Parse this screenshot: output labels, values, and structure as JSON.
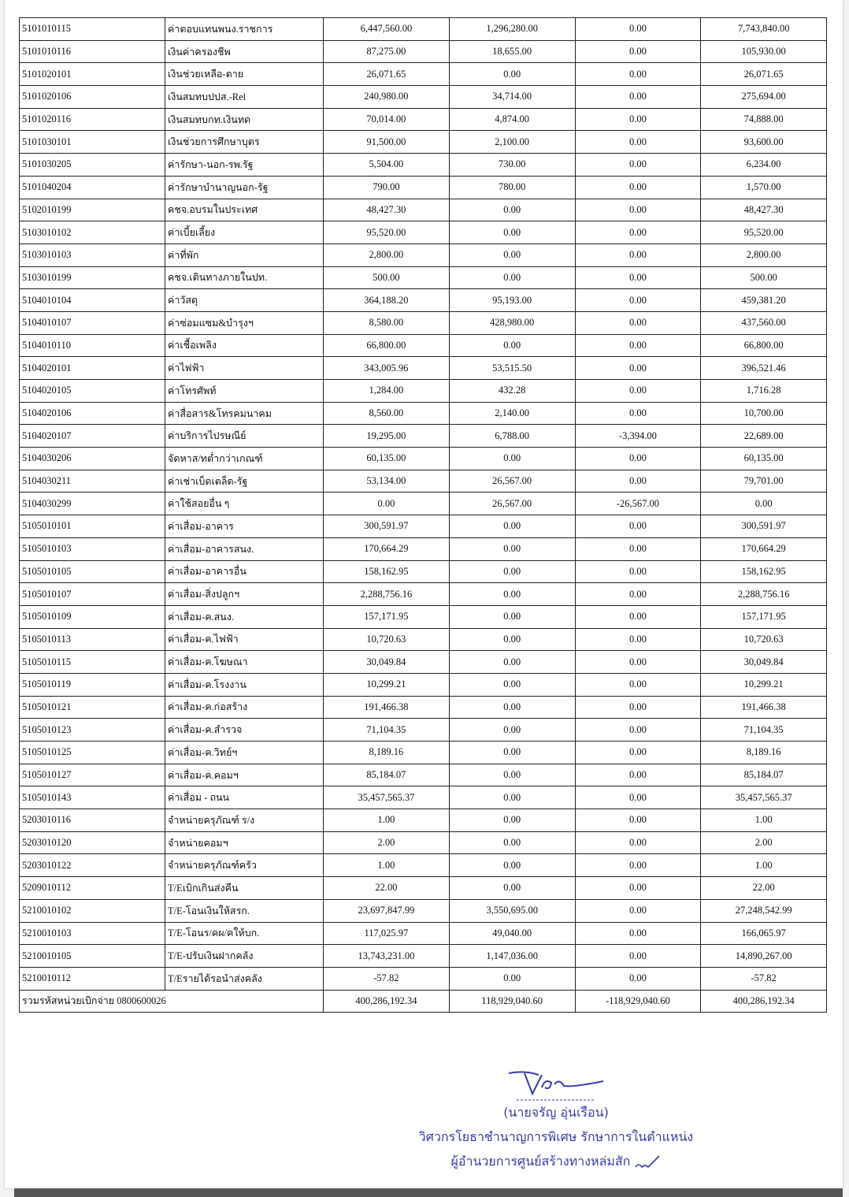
{
  "table": {
    "rows": [
      {
        "code": "5101010115",
        "name": "ค่าตอบแทนพนง.ราชการ",
        "c1": "6,447,560.00",
        "c2": "1,296,280.00",
        "c3": "0.00",
        "c4": "7,743,840.00"
      },
      {
        "code": "5101010116",
        "name": "เงินค่าครองชีพ",
        "c1": "87,275.00",
        "c2": "18,655.00",
        "c3": "0.00",
        "c4": "105,930.00"
      },
      {
        "code": "5101020101",
        "name": "เงินช่วยเหลือ-ตาย",
        "c1": "26,071.65",
        "c2": "0.00",
        "c3": "0.00",
        "c4": "26,071.65"
      },
      {
        "code": "5101020106",
        "name": "เงินสมทบปปส.-Rel",
        "c1": "240,980.00",
        "c2": "34,714.00",
        "c3": "0.00",
        "c4": "275,694.00"
      },
      {
        "code": "5101020116",
        "name": "เงินสมทบกท.เงินทด",
        "c1": "70,014.00",
        "c2": "4,874.00",
        "c3": "0.00",
        "c4": "74,888.00"
      },
      {
        "code": "5101030101",
        "name": "เงินช่วยการศึกษาบุตร",
        "c1": "91,500.00",
        "c2": "2,100.00",
        "c3": "0.00",
        "c4": "93,600.00"
      },
      {
        "code": "5101030205",
        "name": "ค่ารักษา-นอก-รพ.รัฐ",
        "c1": "5,504.00",
        "c2": "730.00",
        "c3": "0.00",
        "c4": "6,234.00"
      },
      {
        "code": "5101040204",
        "name": "ค่ารักษาบำนาญนอก-รัฐ",
        "c1": "790.00",
        "c2": "780.00",
        "c3": "0.00",
        "c4": "1,570.00"
      },
      {
        "code": "5102010199",
        "name": "คชจ.อบรมในประเทศ",
        "c1": "48,427.30",
        "c2": "0.00",
        "c3": "0.00",
        "c4": "48,427.30"
      },
      {
        "code": "5103010102",
        "name": "ค่าเบี้ยเลี้ยง",
        "c1": "95,520.00",
        "c2": "0.00",
        "c3": "0.00",
        "c4": "95,520.00"
      },
      {
        "code": "5103010103",
        "name": "ค่าที่พัก",
        "c1": "2,800.00",
        "c2": "0.00",
        "c3": "0.00",
        "c4": "2,800.00"
      },
      {
        "code": "5103010199",
        "name": "คชจ.เดินทางภายในปท.",
        "c1": "500.00",
        "c2": "0.00",
        "c3": "0.00",
        "c4": "500.00"
      },
      {
        "code": "5104010104",
        "name": "ค่าวัสดุ",
        "c1": "364,188.20",
        "c2": "95,193.00",
        "c3": "0.00",
        "c4": "459,381.20"
      },
      {
        "code": "5104010107",
        "name": "ค่าซ่อมแซม&บำรุงฯ",
        "c1": "8,580.00",
        "c2": "428,980.00",
        "c3": "0.00",
        "c4": "437,560.00"
      },
      {
        "code": "5104010110",
        "name": "ค่าเชื้อเพลิง",
        "c1": "66,800.00",
        "c2": "0.00",
        "c3": "0.00",
        "c4": "66,800.00"
      },
      {
        "code": "5104020101",
        "name": "ค่าไฟฟ้า",
        "c1": "343,005.96",
        "c2": "53,515.50",
        "c3": "0.00",
        "c4": "396,521.46"
      },
      {
        "code": "5104020105",
        "name": "ค่าโทรศัพท์",
        "c1": "1,284.00",
        "c2": "432.28",
        "c3": "0.00",
        "c4": "1,716.28"
      },
      {
        "code": "5104020106",
        "name": "ค่าสื่อสาร&โทรคมนาคม",
        "c1": "8,560.00",
        "c2": "2,140.00",
        "c3": "0.00",
        "c4": "10,700.00"
      },
      {
        "code": "5104020107",
        "name": "ค่าบริการไปรษณีย์",
        "c1": "19,295.00",
        "c2": "6,788.00",
        "c3": "-3,394.00",
        "c4": "22,689.00"
      },
      {
        "code": "5104030206",
        "name": "จัดหาส/ทต่ำกว่าเกณฑ์",
        "c1": "60,135.00",
        "c2": "0.00",
        "c3": "0.00",
        "c4": "60,135.00"
      },
      {
        "code": "5104030211",
        "name": "ค่าเช่าเบ็ดเตล็ด-รัฐ",
        "c1": "53,134.00",
        "c2": "26,567.00",
        "c3": "0.00",
        "c4": "79,701.00"
      },
      {
        "code": "5104030299",
        "name": "ค่าใช้สอยอื่น ๆ",
        "c1": "0.00",
        "c2": "26,567.00",
        "c3": "-26,567.00",
        "c4": "0.00"
      },
      {
        "code": "5105010101",
        "name": "ค่าเสื่อม-อาคาร",
        "c1": "300,591.97",
        "c2": "0.00",
        "c3": "0.00",
        "c4": "300,591.97"
      },
      {
        "code": "5105010103",
        "name": "ค่าเสื่อม-อาคารสนง.",
        "c1": "170,664.29",
        "c2": "0.00",
        "c3": "0.00",
        "c4": "170,664.29"
      },
      {
        "code": "5105010105",
        "name": "ค่าเสื่อม-อาคารอื่น",
        "c1": "158,162.95",
        "c2": "0.00",
        "c3": "0.00",
        "c4": "158,162.95"
      },
      {
        "code": "5105010107",
        "name": "ค่าเสื่อม-สิ่งปลูกฯ",
        "c1": "2,288,756.16",
        "c2": "0.00",
        "c3": "0.00",
        "c4": "2,288,756.16"
      },
      {
        "code": "5105010109",
        "name": "ค่าเสื่อม-ค.สนง.",
        "c1": "157,171.95",
        "c2": "0.00",
        "c3": "0.00",
        "c4": "157,171.95"
      },
      {
        "code": "5105010113",
        "name": "ค่าเสื่อม-ค.ไฟฟ้า",
        "c1": "10,720.63",
        "c2": "0.00",
        "c3": "0.00",
        "c4": "10,720.63"
      },
      {
        "code": "5105010115",
        "name": "ค่าเสื่อม-ค.โฆษณา",
        "c1": "30,049.84",
        "c2": "0.00",
        "c3": "0.00",
        "c4": "30,049.84"
      },
      {
        "code": "5105010119",
        "name": "ค่าเสื่อม-ค.โรงงาน",
        "c1": "10,299.21",
        "c2": "0.00",
        "c3": "0.00",
        "c4": "10,299.21"
      },
      {
        "code": "5105010121",
        "name": "ค่าเสื่อม-ค.ก่อสร้าง",
        "c1": "191,466.38",
        "c2": "0.00",
        "c3": "0.00",
        "c4": "191,466.38"
      },
      {
        "code": "5105010123",
        "name": "ค่าเสื่อม-ค.สำรวจ",
        "c1": "71,104.35",
        "c2": "0.00",
        "c3": "0.00",
        "c4": "71,104.35"
      },
      {
        "code": "5105010125",
        "name": "ค่าเสื่อม-ค.วิทย์ฯ",
        "c1": "8,189.16",
        "c2": "0.00",
        "c3": "0.00",
        "c4": "8,189.16"
      },
      {
        "code": "5105010127",
        "name": "ค่าเสื่อม-ค.คอมฯ",
        "c1": "85,184.07",
        "c2": "0.00",
        "c3": "0.00",
        "c4": "85,184.07"
      },
      {
        "code": "5105010143",
        "name": "ค่าเสื่อม - ถนน",
        "c1": "35,457,565.37",
        "c2": "0.00",
        "c3": "0.00",
        "c4": "35,457,565.37"
      },
      {
        "code": "5203010116",
        "name": "จำหน่ายครุภัณฑ์ ร/ง",
        "c1": "1.00",
        "c2": "0.00",
        "c3": "0.00",
        "c4": "1.00"
      },
      {
        "code": "5203010120",
        "name": "จำหน่ายคอมฯ",
        "c1": "2.00",
        "c2": "0.00",
        "c3": "0.00",
        "c4": "2.00"
      },
      {
        "code": "5203010122",
        "name": "จำหน่ายครุภัณฑ์ครัว",
        "c1": "1.00",
        "c2": "0.00",
        "c3": "0.00",
        "c4": "1.00"
      },
      {
        "code": "5209010112",
        "name": "T/Eเบิกเกินส่งคืน",
        "c1": "22.00",
        "c2": "0.00",
        "c3": "0.00",
        "c4": "22.00"
      },
      {
        "code": "5210010102",
        "name": "T/E-โอนเงินให้สรก.",
        "c1": "23,697,847.99",
        "c2": "3,550,695.00",
        "c3": "0.00",
        "c4": "27,248,542.99"
      },
      {
        "code": "5210010103",
        "name": "T/E-โอนร/คผ/คให้บก.",
        "c1": "117,025.97",
        "c2": "49,040.00",
        "c3": "0.00",
        "c4": "166,065.97"
      },
      {
        "code": "5210010105",
        "name": "T/E-ปรับเงินฝากคลัง",
        "c1": "13,743,231.00",
        "c2": "1,147,036.00",
        "c3": "0.00",
        "c4": "14,890,267.00"
      },
      {
        "code": "5210010112",
        "name": "T/Eรายได้รอนำส่งคลัง",
        "c1": "-57.82",
        "c2": "0.00",
        "c3": "0.00",
        "c4": "-57.82"
      }
    ],
    "total": {
      "label": "รวมรหัสหน่วยเบิกจ่าย 0800600026",
      "c1": "400,286,192.34",
      "c2": "118,929,040.60",
      "c3": "-118,929,040.60",
      "c4": "400,286,192.34"
    }
  },
  "signature": {
    "name": "(นายจรัญ  อุ่นเรือน)",
    "position_line1": "วิศวกรโยธาชำนาญการพิเศษ รักษาการในตำแหน่ง",
    "position_line2": "ผู้อำนวยการศูนย์สร้างทางหล่มสัก",
    "ink_color": "#3a3aa8"
  }
}
